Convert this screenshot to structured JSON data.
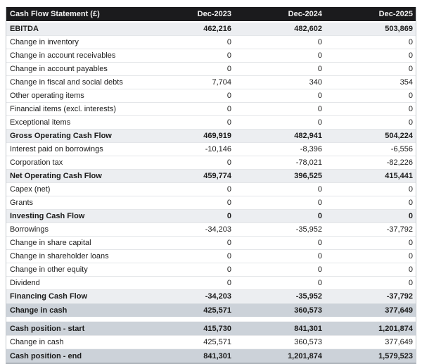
{
  "table": {
    "title": "Cash Flow Statement (£)",
    "columns": [
      "Dec-2023",
      "Dec-2024",
      "Dec-2025"
    ],
    "rows": [
      {
        "label": "EBITDA",
        "values": [
          "462,216",
          "482,602",
          "503,869"
        ],
        "style": "subtotal"
      },
      {
        "label": "Change in inventory",
        "values": [
          "0",
          "0",
          "0"
        ],
        "style": "normal"
      },
      {
        "label": "Change in account receivables",
        "values": [
          "0",
          "0",
          "0"
        ],
        "style": "normal"
      },
      {
        "label": "Change in account payables",
        "values": [
          "0",
          "0",
          "0"
        ],
        "style": "normal"
      },
      {
        "label": "Change in fiscal and social debts",
        "values": [
          "7,704",
          "340",
          "354"
        ],
        "style": "normal"
      },
      {
        "label": "Other operating items",
        "values": [
          "0",
          "0",
          "0"
        ],
        "style": "normal"
      },
      {
        "label": "Financial items (excl. interests)",
        "values": [
          "0",
          "0",
          "0"
        ],
        "style": "normal"
      },
      {
        "label": "Exceptional items",
        "values": [
          "0",
          "0",
          "0"
        ],
        "style": "normal"
      },
      {
        "label": "Gross Operating Cash Flow",
        "values": [
          "469,919",
          "482,941",
          "504,224"
        ],
        "style": "subtotal"
      },
      {
        "label": "Interest paid on borrowings",
        "values": [
          "-10,146",
          "-8,396",
          "-6,556"
        ],
        "style": "normal"
      },
      {
        "label": "Corporation tax",
        "values": [
          "0",
          "-78,021",
          "-82,226"
        ],
        "style": "normal"
      },
      {
        "label": "Net Operating Cash Flow",
        "values": [
          "459,774",
          "396,525",
          "415,441"
        ],
        "style": "subtotal"
      },
      {
        "label": "Capex (net)",
        "values": [
          "0",
          "0",
          "0"
        ],
        "style": "normal"
      },
      {
        "label": "Grants",
        "values": [
          "0",
          "0",
          "0"
        ],
        "style": "normal"
      },
      {
        "label": "Investing Cash Flow",
        "values": [
          "0",
          "0",
          "0"
        ],
        "style": "subtotal"
      },
      {
        "label": "Borrowings",
        "values": [
          "-34,203",
          "-35,952",
          "-37,792"
        ],
        "style": "normal"
      },
      {
        "label": "Change in share capital",
        "values": [
          "0",
          "0",
          "0"
        ],
        "style": "normal"
      },
      {
        "label": "Change in shareholder loans",
        "values": [
          "0",
          "0",
          "0"
        ],
        "style": "normal"
      },
      {
        "label": "Change in other equity",
        "values": [
          "0",
          "0",
          "0"
        ],
        "style": "normal"
      },
      {
        "label": "Dividend",
        "values": [
          "0",
          "0",
          "0"
        ],
        "style": "normal"
      },
      {
        "label": "Financing Cash Flow",
        "values": [
          "-34,203",
          "-35,952",
          "-37,792"
        ],
        "style": "subtotal"
      },
      {
        "label": "Change in cash",
        "values": [
          "425,571",
          "360,573",
          "377,649"
        ],
        "style": "highlight"
      },
      {
        "style": "spacer"
      },
      {
        "label": "Cash position - start",
        "values": [
          "415,730",
          "841,301",
          "1,201,874"
        ],
        "style": "highlight"
      },
      {
        "label": "Change in cash",
        "values": [
          "425,571",
          "360,573",
          "377,649"
        ],
        "style": "normal"
      },
      {
        "label": "Cash position - end",
        "values": [
          "841,301",
          "1,201,874",
          "1,579,523"
        ],
        "style": "highlight"
      }
    ],
    "colors": {
      "header_bg": "#1b1b1d",
      "header_text": "#f2f2f2",
      "text": "#1c1c1c",
      "subtotal_bg": "#eceef1",
      "highlight_bg": "#ccd2d9",
      "row_border": "#e4e6e9",
      "table_border": "#c3c8cd",
      "bottom_border": "#adb3ba"
    }
  }
}
